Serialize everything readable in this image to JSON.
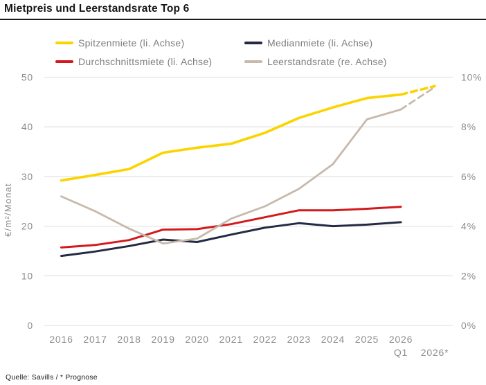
{
  "title": "Mietpreis und Leerstandsrate Top 6",
  "footer": "Quelle: Savills / * Prognose",
  "legend": {
    "items": [
      {
        "label": "Spitzenmiete (li. Achse)",
        "color": "#FBD400"
      },
      {
        "label": "Medianmiete (li. Achse)",
        "color": "#242A42"
      },
      {
        "label": "Durchschnittsmiete (li. Achse)",
        "color": "#D2191C"
      },
      {
        "label": "Leerstandsrate (re. Achse)",
        "color": "#C7B9AB"
      }
    ]
  },
  "chart_data": {
    "type": "line",
    "title": "Mietpreis und Leerstandsrate Top 6",
    "x_labels": [
      {
        "l1": "2016",
        "l2": ""
      },
      {
        "l1": "2017",
        "l2": ""
      },
      {
        "l1": "2018",
        "l2": ""
      },
      {
        "l1": "2019",
        "l2": ""
      },
      {
        "l1": "2020",
        "l2": ""
      },
      {
        "l1": "2021",
        "l2": ""
      },
      {
        "l1": "2022",
        "l2": ""
      },
      {
        "l1": "2023",
        "l2": ""
      },
      {
        "l1": "2024",
        "l2": ""
      },
      {
        "l1": "2025",
        "l2": ""
      },
      {
        "l1": "2026",
        "l2": "Q1"
      },
      {
        "l1": "",
        "l2": "2026*"
      }
    ],
    "left_axis": {
      "label": "€/m²/Monat",
      "min": 0,
      "max": 50,
      "tick_step": 10,
      "tick_labels": [
        "0",
        "10",
        "20",
        "30",
        "40",
        "50"
      ]
    },
    "right_axis": {
      "min": 0,
      "max": 10,
      "tick_step": 2,
      "tick_labels": [
        "0%",
        "2%",
        "4%",
        "6%",
        "8%",
        "10%"
      ]
    },
    "grid": true,
    "legend_position": "top",
    "series": [
      {
        "name": "Spitzenmiete (li. Achse)",
        "axis": "left",
        "color": "#FBD400",
        "width": 3.6,
        "dashed_from": 10,
        "values": [
          29.2,
          30.3,
          31.5,
          34.8,
          35.8,
          36.6,
          38.8,
          41.8,
          43.9,
          45.8,
          46.5,
          48.2
        ]
      },
      {
        "name": "Medianmiete (li. Achse)",
        "axis": "left",
        "color": "#242A42",
        "width": 3,
        "values": [
          14.0,
          14.9,
          16.0,
          17.3,
          16.8,
          18.3,
          19.7,
          20.6,
          20.0,
          20.3,
          20.8,
          null
        ]
      },
      {
        "name": "Durchschnittsmiete (li. Achse)",
        "axis": "left",
        "color": "#D2191C",
        "width": 3,
        "values": [
          15.7,
          16.2,
          17.2,
          19.3,
          19.4,
          20.4,
          21.8,
          23.2,
          23.2,
          23.5,
          23.9,
          null
        ]
      },
      {
        "name": "Leerstandsrate (re. Achse)",
        "axis": "right",
        "color": "#C7B9AB",
        "width": 2.8,
        "dashed_from": 10,
        "values": [
          5.2,
          4.6,
          3.9,
          3.3,
          3.5,
          4.3,
          4.8,
          5.5,
          6.5,
          8.3,
          8.7,
          9.6
        ]
      }
    ]
  }
}
